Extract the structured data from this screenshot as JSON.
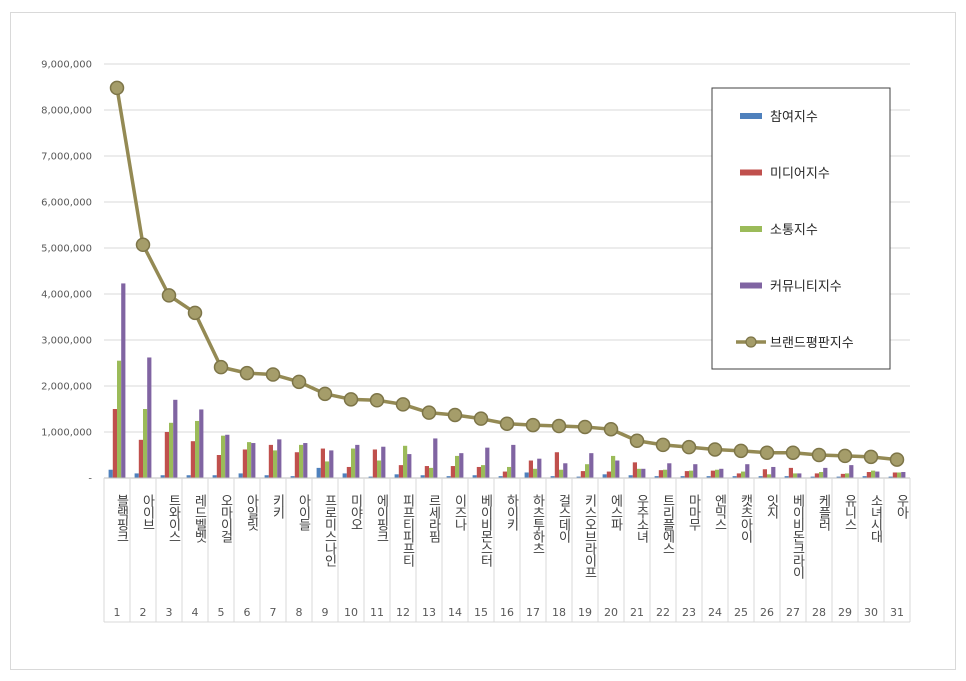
{
  "chart_data": {
    "type": "bar",
    "categories": [
      "블랙핑크",
      "아이브",
      "트와이스",
      "레드벨벳",
      "오마이걸",
      "아일릿",
      "키키",
      "아이들",
      "프로미스나인",
      "미야오",
      "에이핑크",
      "피프티피프티",
      "르세라핌",
      "이즈나",
      "베이비몬스터",
      "하이키",
      "하츠투하츠",
      "걸스데이",
      "키스오브라이프",
      "에스파",
      "우주소녀",
      "트리플에스",
      "마마무",
      "엔믹스",
      "캣츠아이",
      "잇지",
      "베이비돈크라이",
      "케플러",
      "유니스",
      "소녀시대",
      "우아"
    ],
    "ranks": [
      "1",
      "2",
      "3",
      "4",
      "5",
      "6",
      "7",
      "8",
      "9",
      "10",
      "11",
      "12",
      "13",
      "14",
      "15",
      "16",
      "17",
      "18",
      "19",
      "20",
      "21",
      "22",
      "23",
      "24",
      "25",
      "26",
      "27",
      "28",
      "29",
      "30",
      "31"
    ],
    "ylim": [
      0,
      9000000
    ],
    "yticks": [
      "-",
      "1,000,000",
      "2,000,000",
      "3,000,000",
      "4,000,000",
      "5,000,000",
      "6,000,000",
      "7,000,000",
      "8,000,000",
      "9,000,000"
    ],
    "legend_position": "right",
    "grid": true,
    "series": [
      {
        "name": "참여지수",
        "type": "bar",
        "color": "#4f81bd",
        "values": [
          180000,
          100000,
          60000,
          60000,
          60000,
          100000,
          60000,
          40000,
          220000,
          100000,
          30000,
          80000,
          60000,
          40000,
          60000,
          40000,
          120000,
          40000,
          30000,
          80000,
          60000,
          40000,
          40000,
          40000,
          40000,
          40000,
          40000,
          30000,
          30000,
          40000,
          30000
        ]
      },
      {
        "name": "미디어지수",
        "type": "bar",
        "color": "#c0504d",
        "values": [
          1500000,
          830000,
          1000000,
          800000,
          500000,
          620000,
          720000,
          560000,
          640000,
          240000,
          620000,
          280000,
          260000,
          260000,
          240000,
          140000,
          380000,
          560000,
          150000,
          140000,
          340000,
          170000,
          150000,
          160000,
          100000,
          190000,
          220000,
          100000,
          90000,
          130000,
          120000
        ]
      },
      {
        "name": "소통지수",
        "type": "bar",
        "color": "#9bbb59",
        "values": [
          2550000,
          1500000,
          1200000,
          1240000,
          920000,
          780000,
          600000,
          720000,
          360000,
          640000,
          380000,
          700000,
          220000,
          480000,
          280000,
          240000,
          200000,
          180000,
          300000,
          480000,
          200000,
          180000,
          160000,
          180000,
          140000,
          80000,
          100000,
          130000,
          100000,
          160000,
          120000
        ]
      },
      {
        "name": "커뮤니티지수",
        "type": "bar",
        "color": "#8064a2",
        "values": [
          4230000,
          2620000,
          1700000,
          1490000,
          940000,
          760000,
          840000,
          760000,
          600000,
          720000,
          680000,
          520000,
          860000,
          540000,
          660000,
          720000,
          420000,
          320000,
          540000,
          380000,
          200000,
          320000,
          300000,
          200000,
          300000,
          240000,
          100000,
          220000,
          280000,
          140000,
          130000
        ]
      },
      {
        "name": "브랜드평판지수",
        "type": "line",
        "color": "#948a54",
        "values": [
          8480000,
          5070000,
          3970000,
          3590000,
          2410000,
          2280000,
          2250000,
          2090000,
          1830000,
          1710000,
          1690000,
          1600000,
          1420000,
          1370000,
          1290000,
          1180000,
          1150000,
          1130000,
          1110000,
          1060000,
          810000,
          720000,
          670000,
          620000,
          590000,
          550000,
          550000,
          500000,
          480000,
          460000,
          400000
        ]
      }
    ]
  }
}
